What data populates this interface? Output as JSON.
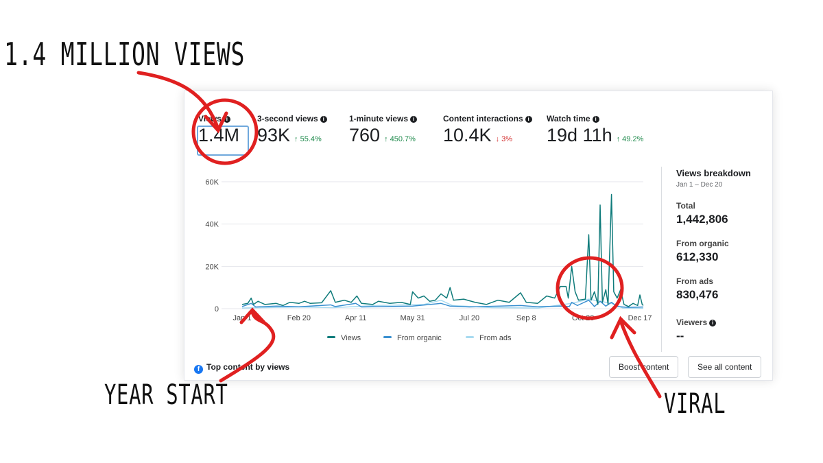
{
  "metrics": [
    {
      "label": "Views",
      "value": "1.4M",
      "delta": "",
      "dir": ""
    },
    {
      "label": "3-second views",
      "value": "93K",
      "delta": "↑ 55.4%",
      "dir": "up"
    },
    {
      "label": "1-minute views",
      "value": "760",
      "delta": "↑ 450.7%",
      "dir": "up"
    },
    {
      "label": "Content interactions",
      "value": "10.4K",
      "delta": "↓ 3%",
      "dir": "down"
    },
    {
      "label": "Watch time",
      "value": "19d 11h",
      "delta": "↑ 49.2%",
      "dir": "up"
    }
  ],
  "breakdown": {
    "title": "Views breakdown",
    "range": "Jan 1 – Dec 20",
    "total_label": "Total",
    "total": "1,442,806",
    "organic_label": "From organic",
    "organic": "612,330",
    "ads_label": "From ads",
    "ads": "830,476",
    "viewers_label": "Viewers",
    "viewers": "--"
  },
  "footer": {
    "top_content": "Top content by views",
    "boost": "Boost content",
    "see_all": "See all content"
  },
  "annotations": {
    "top": "1.4 MILLION VIEWS",
    "left": "YEAR START",
    "right": "VIRAL"
  },
  "colors": {
    "views": "#0f7b7b",
    "organic": "#3a8fd0",
    "ads": "#a8daf0",
    "annotation": "#e02020"
  },
  "chart_data": {
    "type": "line",
    "title": "Views",
    "x_unit": "day of year",
    "yticks": [
      "0",
      "20K",
      "40K",
      "60K"
    ],
    "ylim": [
      0,
      60000
    ],
    "xticks": [
      {
        "day": 0,
        "label": "Jan 1"
      },
      {
        "day": 50,
        "label": "Feb 20"
      },
      {
        "day": 100,
        "label": "Apr 11"
      },
      {
        "day": 150,
        "label": "May 31"
      },
      {
        "day": 200,
        "label": "Jul 20"
      },
      {
        "day": 250,
        "label": "Sep 8"
      },
      {
        "day": 300,
        "label": "Oct 28"
      },
      {
        "day": 350,
        "label": "Dec 17"
      }
    ],
    "xlim": [
      0,
      353
    ],
    "series": [
      {
        "name": "Views",
        "key": "views",
        "points": [
          [
            0,
            2000
          ],
          [
            5,
            2500
          ],
          [
            8,
            5000
          ],
          [
            10,
            2000
          ],
          [
            14,
            3500
          ],
          [
            20,
            2000
          ],
          [
            30,
            2500
          ],
          [
            36,
            1500
          ],
          [
            42,
            3000
          ],
          [
            50,
            2500
          ],
          [
            55,
            3500
          ],
          [
            60,
            2500
          ],
          [
            70,
            2800
          ],
          [
            78,
            8500
          ],
          [
            82,
            3000
          ],
          [
            90,
            4000
          ],
          [
            96,
            3000
          ],
          [
            101,
            6000
          ],
          [
            105,
            2500
          ],
          [
            115,
            2000
          ],
          [
            120,
            3500
          ],
          [
            130,
            2500
          ],
          [
            140,
            3000
          ],
          [
            148,
            2000
          ],
          [
            150,
            8000
          ],
          [
            155,
            5000
          ],
          [
            160,
            6000
          ],
          [
            165,
            3500
          ],
          [
            170,
            4000
          ],
          [
            175,
            7000
          ],
          [
            180,
            5000
          ],
          [
            183,
            10000
          ],
          [
            186,
            4000
          ],
          [
            195,
            4500
          ],
          [
            205,
            3000
          ],
          [
            215,
            2000
          ],
          [
            225,
            4000
          ],
          [
            235,
            3000
          ],
          [
            245,
            7500
          ],
          [
            250,
            3000
          ],
          [
            260,
            2500
          ],
          [
            268,
            6000
          ],
          [
            275,
            5000
          ],
          [
            280,
            10500
          ],
          [
            285,
            10500
          ],
          [
            287,
            5000
          ],
          [
            290,
            20000
          ],
          [
            293,
            8000
          ],
          [
            296,
            4000
          ],
          [
            302,
            4500
          ],
          [
            305,
            35000
          ],
          [
            307,
            4000
          ],
          [
            310,
            8000
          ],
          [
            313,
            2000
          ],
          [
            315,
            49000
          ],
          [
            317,
            3000
          ],
          [
            320,
            9000
          ],
          [
            322,
            2000
          ],
          [
            325,
            54000
          ],
          [
            327,
            8000
          ],
          [
            330,
            5000
          ],
          [
            333,
            9000
          ],
          [
            336,
            2000
          ],
          [
            340,
            1000
          ],
          [
            344,
            2500
          ],
          [
            348,
            1500
          ],
          [
            350,
            6500
          ],
          [
            352,
            2000
          ],
          [
            353,
            1500
          ]
        ]
      },
      {
        "name": "From organic",
        "key": "organic",
        "points": [
          [
            0,
            1000
          ],
          [
            8,
            2500
          ],
          [
            12,
            800
          ],
          [
            30,
            1200
          ],
          [
            50,
            900
          ],
          [
            78,
            1800
          ],
          [
            82,
            1000
          ],
          [
            100,
            2500
          ],
          [
            105,
            800
          ],
          [
            150,
            1200
          ],
          [
            175,
            2500
          ],
          [
            183,
            1200
          ],
          [
            200,
            800
          ],
          [
            245,
            1500
          ],
          [
            260,
            900
          ],
          [
            280,
            1200
          ],
          [
            288,
            1000
          ],
          [
            290,
            3000
          ],
          [
            295,
            1500
          ],
          [
            305,
            4000
          ],
          [
            310,
            1000
          ],
          [
            315,
            3500
          ],
          [
            320,
            1200
          ],
          [
            325,
            3000
          ],
          [
            330,
            1000
          ],
          [
            340,
            600
          ],
          [
            353,
            800
          ]
        ]
      },
      {
        "name": "From ads",
        "key": "ads",
        "points": [
          [
            0,
            300
          ],
          [
            20,
            500
          ],
          [
            50,
            800
          ],
          [
            80,
            500
          ],
          [
            120,
            1500
          ],
          [
            160,
            2000
          ],
          [
            175,
            4000
          ],
          [
            185,
            1500
          ],
          [
            220,
            500
          ],
          [
            260,
            300
          ],
          [
            290,
            2500
          ],
          [
            305,
            4500
          ],
          [
            315,
            3500
          ],
          [
            325,
            2500
          ],
          [
            335,
            300
          ],
          [
            353,
            200
          ]
        ]
      }
    ]
  }
}
